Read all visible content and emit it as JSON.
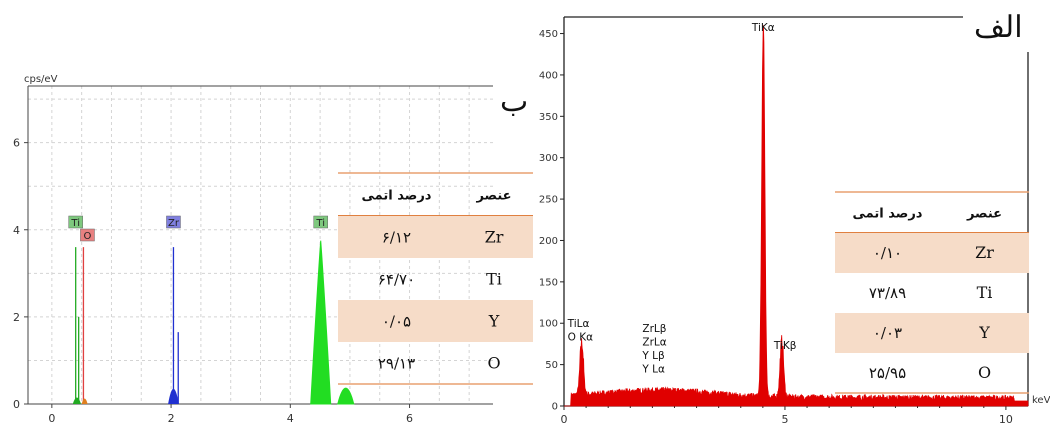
{
  "panel_letters": {
    "left": "ب",
    "right": "الف"
  },
  "chart_data": [
    {
      "type": "line",
      "panel": "ب",
      "ylabel": "cps/eV",
      "xlabel": "",
      "xlim": [
        -0.4,
        7.4
      ],
      "ylim": [
        0,
        7.3
      ],
      "xticks": [
        0,
        2,
        4,
        6
      ],
      "yticks": [
        0,
        2,
        4,
        6
      ],
      "grid": true,
      "peaks": [
        {
          "x": 0.4,
          "y": 3.6,
          "color": "#22aa22"
        },
        {
          "x": 0.45,
          "y": 2.0,
          "color": "#22aa22"
        },
        {
          "x": 0.53,
          "y": 3.6,
          "color": "#e04040"
        },
        {
          "x": 2.04,
          "y": 3.6,
          "color": "#2030d0"
        },
        {
          "x": 2.12,
          "y": 1.65,
          "color": "#2030d0"
        },
        {
          "x": 4.51,
          "y": 3.75,
          "color": "#22dd22"
        },
        {
          "x": 4.93,
          "y": 0.5,
          "color": "#22dd22"
        }
      ],
      "peak_labels": [
        {
          "text": "Ti",
          "x": 0.4,
          "color": "#7ec87e"
        },
        {
          "text": "O",
          "x": 0.53,
          "color": "#e88080"
        },
        {
          "text": "Zr",
          "x": 2.04,
          "color": "#8080e0"
        },
        {
          "text": "Ti",
          "x": 4.51,
          "color": "#7ec87e"
        }
      ],
      "table": {
        "headers": [
          "درصد اتمی",
          "عنصر"
        ],
        "rows": [
          {
            "value": "۶/۱۲",
            "element": "Zr",
            "shaded": true
          },
          {
            "value": "۶۴/۷۰",
            "element": "Ti",
            "shaded": false
          },
          {
            "value": "۰/۰۵",
            "element": "Y",
            "shaded": true
          },
          {
            "value": "۲۹/۱۳",
            "element": "O",
            "shaded": false
          }
        ]
      }
    },
    {
      "type": "line",
      "panel": "الف",
      "xlabel": "keV",
      "ylabel": "",
      "xlim": [
        0,
        10.5
      ],
      "ylim": [
        0,
        470
      ],
      "xticks": [
        0,
        5,
        10
      ],
      "yticks": [
        0,
        50,
        100,
        150,
        200,
        250,
        300,
        350,
        400,
        450
      ],
      "grid": false,
      "color": "#e00000",
      "peaks": [
        {
          "x": 0.4,
          "y": 60
        },
        {
          "x": 4.51,
          "y": 445
        },
        {
          "x": 4.93,
          "y": 65
        }
      ],
      "peak_labels": [
        {
          "lines": [
            "TiKα"
          ],
          "x": 4.51
        },
        {
          "lines": [
            "TiKβ"
          ],
          "x": 4.93
        },
        {
          "lines": [
            "TiLα",
            "O Kα"
          ],
          "x": 0.4
        },
        {
          "lines": [
            "ZrLβ",
            "ZrLα",
            "Y Lβ",
            "Y Lα"
          ],
          "x": 2.0
        }
      ],
      "table": {
        "headers": [
          "درصد اتمی",
          "عنصر"
        ],
        "rows": [
          {
            "value": "۰/۱۰",
            "element": "Zr",
            "shaded": true
          },
          {
            "value": "۷۳/۸۹",
            "element": "Ti",
            "shaded": false
          },
          {
            "value": "۰/۰۳",
            "element": "Y",
            "shaded": true
          },
          {
            "value": "۲۵/۹۵",
            "element": "O",
            "shaded": false
          }
        ]
      }
    }
  ]
}
